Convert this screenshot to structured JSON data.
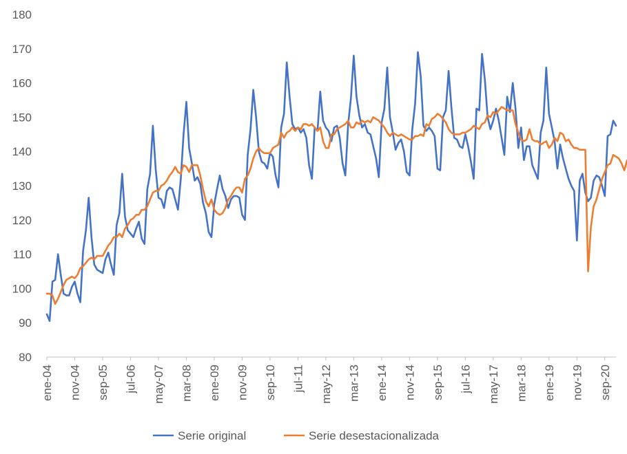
{
  "chart_data": {
    "type": "line",
    "title": "",
    "xlabel": "",
    "ylabel": "",
    "ylim": [
      80,
      180
    ],
    "y_ticks": [
      80,
      90,
      100,
      110,
      120,
      130,
      140,
      150,
      160,
      170,
      180
    ],
    "x_start": "2004-01",
    "x_end": "2021-09",
    "x_tick_labels": [
      "ene-04",
      "nov-04",
      "sep-05",
      "jul-06",
      "may-07",
      "mar-08",
      "ene-09",
      "nov-09",
      "sep-10",
      "jul-11",
      "may-12",
      "mar-13",
      "ene-14",
      "nov-14",
      "sep-15",
      "jul-16",
      "may-17",
      "mar-18",
      "ene-19",
      "nov-19",
      "sep-20"
    ],
    "grid": false,
    "legend_position": "bottom",
    "series": [
      {
        "name": "Serie original",
        "color": "#4472C4",
        "values": [
          92.5,
          90.5,
          102,
          102.5,
          110,
          104,
          98.5,
          98,
          98,
          100.5,
          102,
          98.5,
          96,
          111,
          117,
          126.5,
          115,
          107,
          105.5,
          105,
          104.5,
          108.5,
          110.5,
          107,
          104,
          118.5,
          122,
          133.5,
          121,
          117,
          116,
          115,
          117.5,
          119.5,
          114.5,
          113,
          129,
          133.5,
          147.5,
          135,
          126.5,
          126,
          123.5,
          128.5,
          129.5,
          129,
          126,
          123,
          132,
          145,
          154.5,
          141,
          136.5,
          131.5,
          132.5,
          130.5,
          125,
          122,
          116.5,
          115,
          124.5,
          129,
          133,
          129,
          127,
          123.5,
          126,
          127,
          127,
          126.5,
          121.5,
          120,
          139,
          146.5,
          158,
          150,
          140,
          137,
          136.5,
          135,
          139.5,
          138.5,
          133,
          129.5,
          147,
          151,
          166,
          156,
          148,
          146.5,
          147,
          145.5,
          146.5,
          144,
          136,
          132,
          147,
          146,
          157.5,
          149,
          147,
          146,
          143,
          147,
          147.5,
          144,
          136.5,
          133,
          148,
          155.5,
          168,
          156,
          150.5,
          147,
          148,
          145.5,
          145,
          141.5,
          138,
          132.5,
          148.5,
          152.5,
          164.5,
          150,
          145.5,
          140.5,
          142.5,
          143.5,
          140,
          134,
          133,
          146.5,
          154,
          169,
          162,
          147.5,
          146,
          147,
          146,
          144.5,
          135,
          134.5,
          150,
          152,
          163.5,
          153,
          144,
          143.5,
          141.5,
          141,
          145,
          141.5,
          137,
          132,
          152.5,
          152,
          168.5,
          161,
          150,
          146.5,
          149,
          152.5,
          149,
          144,
          139,
          156,
          151.5,
          160,
          152.5,
          141,
          147,
          137.5,
          141.5,
          141.5,
          136,
          134,
          132,
          145.5,
          149,
          164.5,
          151,
          147,
          143,
          135,
          142,
          138,
          135,
          132,
          130,
          128.5,
          114,
          131.5,
          133.5,
          128,
          125.5,
          126.5,
          131.5,
          133,
          132.5,
          130,
          127,
          144.5,
          145,
          149,
          147.5
        ]
      },
      {
        "name": "Serie desestacionalizada",
        "color": "#ED7D31",
        "values": [
          98.5,
          98.5,
          98,
          95.5,
          97,
          99,
          101,
          102.5,
          103,
          103.5,
          103,
          104,
          106,
          106.5,
          107.5,
          108.5,
          109,
          108.5,
          109.5,
          109.5,
          109.5,
          111,
          112.5,
          113.5,
          115,
          115,
          116,
          115,
          117.5,
          118.5,
          120,
          120.5,
          121.5,
          121.5,
          123,
          123,
          124,
          126,
          128,
          128.5,
          128.5,
          130,
          130.5,
          131.5,
          133,
          134,
          135.5,
          134,
          133.5,
          136,
          135.5,
          134,
          136,
          136,
          136,
          133,
          129,
          125.5,
          124,
          126,
          123,
          122,
          121.5,
          122,
          123.5,
          126,
          127,
          128.5,
          129.5,
          129.5,
          128,
          132,
          133,
          135,
          138,
          140,
          141,
          140,
          139.5,
          139.5,
          139.5,
          141,
          141.5,
          142,
          145.5,
          144,
          145.5,
          146,
          147,
          146,
          147,
          146.5,
          148,
          148,
          147.5,
          148,
          147,
          146,
          147,
          143,
          141,
          141,
          145,
          145,
          146.5,
          147,
          147.5,
          148,
          149,
          147,
          147,
          148.5,
          148,
          149,
          148.5,
          149,
          148.5,
          150,
          149.5,
          149,
          148,
          147,
          145.5,
          144.5,
          145.5,
          145,
          144.5,
          145,
          144.5,
          144,
          143.5,
          143.5,
          144.5,
          144.5,
          145,
          144.5,
          148,
          147.5,
          149.5,
          150,
          151,
          150.5,
          149.5,
          148.5,
          146.5,
          145.5,
          145,
          145,
          145,
          145.5,
          145.5,
          146,
          146.5,
          147.5,
          147,
          146.5,
          148,
          148.5,
          150.5,
          150,
          151.5,
          151,
          152,
          153,
          152.5,
          152,
          152,
          152,
          148,
          145.5,
          143.5,
          143,
          143.5,
          146.5,
          143.5,
          143,
          143,
          142,
          142.5,
          143,
          141,
          142,
          144,
          143,
          145.5,
          145,
          143,
          143.5,
          142,
          141,
          141,
          140.5,
          140.5,
          140.5,
          105,
          118,
          124,
          126,
          129,
          132,
          134,
          136,
          136.5,
          139,
          138.5,
          138,
          136.5,
          134.5,
          137.5
        ]
      }
    ]
  }
}
